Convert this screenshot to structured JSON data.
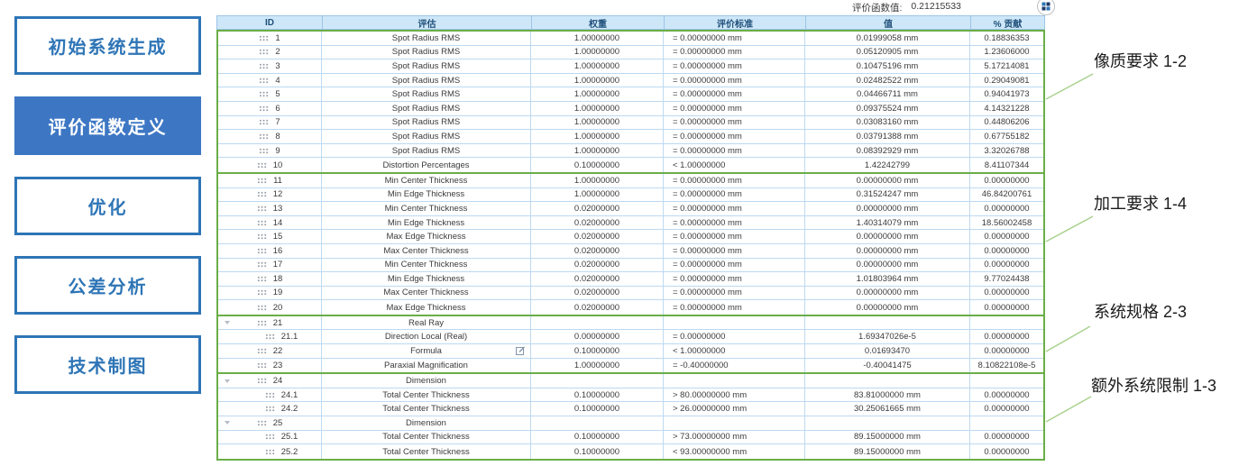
{
  "colors": {
    "sidebar_blue": "#2E75B6",
    "sidebar_active_fill": "#3D77C4",
    "group_border_green": "#6AAE47",
    "leader_line_green": "#A9D18E",
    "header_bg_blue": "#CDE7F8",
    "header_text_blue": "#1F4E79",
    "row_line_blue": "#BDD9F1"
  },
  "sidebar": {
    "buttons": [
      {
        "label": "初始系统生成",
        "active": false
      },
      {
        "label": "评价函数定义",
        "active": true
      },
      {
        "label": "优化",
        "active": false
      },
      {
        "label": "公差分析",
        "active": false
      },
      {
        "label": "技术制图",
        "active": false
      }
    ]
  },
  "header": {
    "merit_label": "评价函数值:",
    "merit_value": "0.21215533",
    "grid_button_icon": "view-grid-icon"
  },
  "table": {
    "columns": [
      "ID",
      "评估",
      "权重",
      "评价标准",
      "值",
      "% 贡献"
    ],
    "groups": [
      {
        "annotation": "像质要求 1-2",
        "rows": [
          {
            "type": "item",
            "id": "1",
            "evaluation": "Spot Radius RMS",
            "weight": "1.00000000",
            "criteria": "= 0.00000000 mm",
            "value": "0.01999058 mm",
            "contribution": "0.18836353"
          },
          {
            "type": "item",
            "id": "2",
            "evaluation": "Spot Radius RMS",
            "weight": "1.00000000",
            "criteria": "= 0.00000000 mm",
            "value": "0.05120905 mm",
            "contribution": "1.23606000"
          },
          {
            "type": "item",
            "id": "3",
            "evaluation": "Spot Radius RMS",
            "weight": "1.00000000",
            "criteria": "= 0.00000000 mm",
            "value": "0.10475196 mm",
            "contribution": "5.17214081"
          },
          {
            "type": "item",
            "id": "4",
            "evaluation": "Spot Radius RMS",
            "weight": "1.00000000",
            "criteria": "= 0.00000000 mm",
            "value": "0.02482522 mm",
            "contribution": "0.29049081"
          },
          {
            "type": "item",
            "id": "5",
            "evaluation": "Spot Radius RMS",
            "weight": "1.00000000",
            "criteria": "= 0.00000000 mm",
            "value": "0.04466711 mm",
            "contribution": "0.94041973"
          },
          {
            "type": "item",
            "id": "6",
            "evaluation": "Spot Radius RMS",
            "weight": "1.00000000",
            "criteria": "= 0.00000000 mm",
            "value": "0.09375524 mm",
            "contribution": "4.14321228"
          },
          {
            "type": "item",
            "id": "7",
            "evaluation": "Spot Radius RMS",
            "weight": "1.00000000",
            "criteria": "= 0.00000000 mm",
            "value": "0.03083160 mm",
            "contribution": "0.44806206"
          },
          {
            "type": "item",
            "id": "8",
            "evaluation": "Spot Radius RMS",
            "weight": "1.00000000",
            "criteria": "= 0.00000000 mm",
            "value": "0.03791388 mm",
            "contribution": "0.67755182"
          },
          {
            "type": "item",
            "id": "9",
            "evaluation": "Spot Radius RMS",
            "weight": "1.00000000",
            "criteria": "= 0.00000000 mm",
            "value": "0.08392929 mm",
            "contribution": "3.32026788"
          },
          {
            "type": "item",
            "id": "10",
            "evaluation": "Distortion Percentages",
            "weight": "0.10000000",
            "criteria": "< 1.00000000",
            "value": "1.42242799",
            "contribution": "8.41107344"
          }
        ]
      },
      {
        "annotation": "加工要求 1-4",
        "rows": [
          {
            "type": "item",
            "id": "11",
            "evaluation": "Min Center Thickness",
            "weight": "1.00000000",
            "criteria": "= 0.00000000 mm",
            "value": "0.00000000 mm",
            "contribution": "0.00000000"
          },
          {
            "type": "item",
            "id": "12",
            "evaluation": "Min Edge Thickness",
            "weight": "1.00000000",
            "criteria": "= 0.00000000 mm",
            "value": "0.31524247 mm",
            "contribution": "46.84200761"
          },
          {
            "type": "item",
            "id": "13",
            "evaluation": "Min Center Thickness",
            "weight": "0.02000000",
            "criteria": "= 0.00000000 mm",
            "value": "0.00000000 mm",
            "contribution": "0.00000000"
          },
          {
            "type": "item",
            "id": "14",
            "evaluation": "Min Edge Thickness",
            "weight": "0.02000000",
            "criteria": "= 0.00000000 mm",
            "value": "1.40314079 mm",
            "contribution": "18.56002458"
          },
          {
            "type": "item",
            "id": "15",
            "evaluation": "Max Edge Thickness",
            "weight": "0.02000000",
            "criteria": "= 0.00000000 mm",
            "value": "0.00000000 mm",
            "contribution": "0.00000000"
          },
          {
            "type": "item",
            "id": "16",
            "evaluation": "Max Center Thickness",
            "weight": "0.02000000",
            "criteria": "= 0.00000000 mm",
            "value": "0.00000000 mm",
            "contribution": "0.00000000"
          },
          {
            "type": "item",
            "id": "17",
            "evaluation": "Min Center Thickness",
            "weight": "0.02000000",
            "criteria": "= 0.00000000 mm",
            "value": "0.00000000 mm",
            "contribution": "0.00000000"
          },
          {
            "type": "item",
            "id": "18",
            "evaluation": "Min Edge Thickness",
            "weight": "0.02000000",
            "criteria": "= 0.00000000 mm",
            "value": "1.01803964 mm",
            "contribution": "9.77024438"
          },
          {
            "type": "item",
            "id": "19",
            "evaluation": "Max Center Thickness",
            "weight": "0.02000000",
            "criteria": "= 0.00000000 mm",
            "value": "0.00000000 mm",
            "contribution": "0.00000000"
          },
          {
            "type": "item",
            "id": "20",
            "evaluation": "Max Edge Thickness",
            "weight": "0.02000000",
            "criteria": "= 0.00000000 mm",
            "value": "0.00000000 mm",
            "contribution": "0.00000000"
          }
        ]
      },
      {
        "annotation": "系统规格 2-3",
        "rows": [
          {
            "type": "group",
            "id": "21",
            "evaluation": "Real Ray",
            "weight": "",
            "criteria": "",
            "value": "",
            "contribution": ""
          },
          {
            "type": "sub",
            "id": "21.1",
            "evaluation": "Direction Local (Real)",
            "weight": "0.00000000",
            "criteria": "= 0.00000000",
            "value": "1.69347026e-5",
            "contribution": "0.00000000"
          },
          {
            "type": "item",
            "id": "22",
            "evaluation": "Formula",
            "edit_icon": true,
            "weight": "0.10000000",
            "criteria": "< 1.00000000",
            "value": "0.01693470",
            "contribution": "0.00000000"
          },
          {
            "type": "item",
            "id": "23",
            "evaluation": "Paraxial Magnification",
            "weight": "1.00000000",
            "criteria": "= -0.40000000",
            "value": "-0.40041475",
            "contribution": "8.10822108e-5"
          }
        ]
      },
      {
        "annotation": "额外系统限制 1-3",
        "rows": [
          {
            "type": "group",
            "id": "24",
            "evaluation": "Dimension",
            "weight": "",
            "criteria": "",
            "value": "",
            "contribution": ""
          },
          {
            "type": "sub",
            "id": "24.1",
            "evaluation": "Total Center Thickness",
            "weight": "0.10000000",
            "criteria": "> 80.00000000 mm",
            "value": "83.81000000 mm",
            "contribution": "0.00000000"
          },
          {
            "type": "sub",
            "id": "24.2",
            "evaluation": "Total Center Thickness",
            "weight": "0.10000000",
            "criteria": "> 26.00000000 mm",
            "value": "30.25061665 mm",
            "contribution": "0.00000000"
          },
          {
            "type": "group",
            "id": "25",
            "evaluation": "Dimension",
            "weight": "",
            "criteria": "",
            "value": "",
            "contribution": ""
          },
          {
            "type": "sub",
            "id": "25.1",
            "evaluation": "Total Center Thickness",
            "weight": "0.10000000",
            "criteria": "> 73.00000000 mm",
            "value": "89.15000000 mm",
            "contribution": "0.00000000"
          },
          {
            "type": "sub",
            "id": "25.2",
            "evaluation": "Total Center Thickness",
            "weight": "0.10000000",
            "criteria": "< 93.00000000 mm",
            "value": "89.15000000 mm",
            "contribution": "0.00000000"
          }
        ]
      }
    ]
  }
}
